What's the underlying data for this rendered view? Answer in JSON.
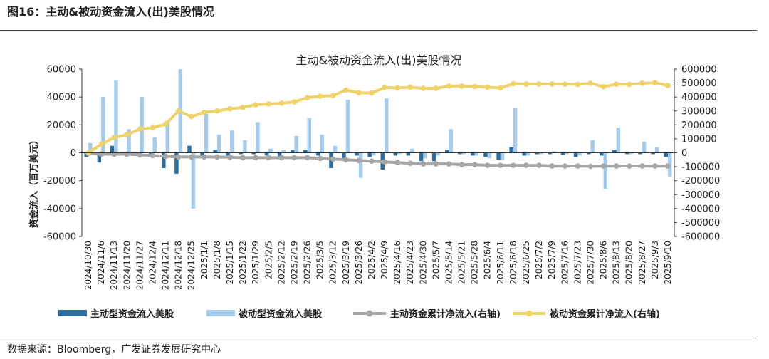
{
  "page": {
    "figure_title": "图16：主动&被动资金流入(出)美股情况",
    "source_text": "数据来源：Bloomberg，广发证券发展研究中心"
  },
  "colors": {
    "active": "#2e6e9e",
    "passive": "#a7cbea",
    "active_cum": "#a6a6a6",
    "passive_cum": "#f0d26a",
    "axis": "#333333"
  },
  "chart_data": {
    "type": "bar",
    "title": "主动&被动资金流入(出)美股情况",
    "ylabel": "资金流入（百万美元）",
    "y2label": "",
    "ylim": [
      -60000,
      60000
    ],
    "y2lim": [
      -600000,
      600000
    ],
    "yticks": [
      -60000,
      -40000,
      -20000,
      0,
      20000,
      40000,
      60000
    ],
    "y2ticks": [
      -600000,
      -500000,
      -400000,
      -300000,
      -200000,
      -100000,
      0,
      100000,
      200000,
      300000,
      400000,
      500000,
      600000
    ],
    "categories": [
      "2024/10/30",
      "2024/11/6",
      "2024/11/13",
      "2024/11/20",
      "2024/11/27",
      "2024/12/4",
      "2024/12/11",
      "2024/12/18",
      "2024/12/25",
      "2025/1/1",
      "2025/1/8",
      "2025/1/15",
      "2025/1/22",
      "2025/1/29",
      "2025/2/5",
      "2025/2/12",
      "2025/2/19",
      "2025/2/26",
      "2025/3/5",
      "2025/3/12",
      "2025/3/19",
      "2025/3/26",
      "2025/4/2",
      "2025/4/9",
      "2025/4/16",
      "2025/4/23",
      "2025/4/30",
      "2025/5/7",
      "2025/5/14",
      "2025/5/21",
      "2025/5/28",
      "2025/6/4",
      "2025/6/11",
      "2025/6/18",
      "2025/6/25",
      "2025/7/2",
      "2025/7/9",
      "2025/7/16",
      "2025/7/23",
      "2025/7/30",
      "2025/8/6",
      "2025/8/13",
      "2025/8/20",
      "2025/8/27",
      "2025/9/3",
      "2025/9/10"
    ],
    "series": [
      {
        "name": "主动型资金流入美股",
        "kind": "bar",
        "axis": "left",
        "color": "#2e6e9e",
        "values": [
          -3000,
          -7000,
          5000,
          -1000,
          -2000,
          -1500,
          -11000,
          -15000,
          5000,
          -3000,
          2000,
          -2000,
          -1000,
          -1000,
          -2000,
          -3000,
          2000,
          2000,
          -2000,
          -11000,
          -4000,
          -2000,
          -3000,
          -12000,
          -2000,
          -2000,
          -6000,
          -6000,
          2000,
          -1000,
          -2000,
          -3000,
          -5000,
          4000,
          -2000,
          -1000,
          -1000,
          -1500,
          -3000,
          -1000,
          -2000,
          2000,
          -1000,
          -1000,
          -1000,
          -3000
        ]
      },
      {
        "name": "被动型资金流入美股",
        "kind": "bar",
        "axis": "left",
        "color": "#a7cbea",
        "values": [
          7000,
          40000,
          52000,
          17000,
          40000,
          11000,
          23000,
          60000,
          -40000,
          28000,
          13000,
          16000,
          9000,
          22000,
          3000,
          2000,
          12000,
          25000,
          13000,
          5000,
          38000,
          -18000,
          -2000,
          39000,
          -1000,
          3000,
          -4000,
          -2000,
          17000,
          -1000,
          -2000,
          -4000,
          -5000,
          32000,
          -2000,
          -1000,
          1000,
          -1000,
          -2000,
          9000,
          -26000,
          18000,
          -1000,
          8000,
          4000,
          -17000
        ]
      },
      {
        "name": "主动资金累计净流入(右轴)",
        "kind": "line",
        "axis": "right",
        "color": "#a6a6a6",
        "values": [
          -5000,
          -10000,
          -10000,
          -10000,
          -15000,
          -20000,
          -25000,
          -30000,
          -30000,
          -30000,
          -30000,
          -32000,
          -35000,
          -35000,
          -35000,
          -35000,
          -35000,
          -35000,
          -40000,
          -45000,
          -50000,
          -55000,
          -60000,
          -65000,
          -70000,
          -75000,
          -80000,
          -80000,
          -80000,
          -85000,
          -85000,
          -90000,
          -90000,
          -90000,
          -90000,
          -90000,
          -95000,
          -95000,
          -95000,
          -97000,
          -95000,
          -95000,
          -95000,
          -95000,
          -95000,
          -95000
        ]
      },
      {
        "name": "被动资金累计净流入(右轴)",
        "kind": "line",
        "axis": "right",
        "color": "#f0d26a",
        "values": [
          0,
          60000,
          110000,
          130000,
          170000,
          180000,
          205000,
          300000,
          260000,
          290000,
          300000,
          315000,
          325000,
          345000,
          350000,
          355000,
          365000,
          395000,
          405000,
          410000,
          450000,
          430000,
          428000,
          468000,
          465000,
          470000,
          462000,
          462000,
          478000,
          478000,
          475000,
          470000,
          465000,
          495000,
          492000,
          493000,
          493000,
          492000,
          490000,
          498000,
          474000,
          492000,
          490000,
          498000,
          502000,
          482000
        ]
      }
    ],
    "legend": {
      "position": "bottom",
      "items": [
        "主动型资金流入美股",
        "被动型资金流入美股",
        "主动资金累计净流入(右轴)",
        "被动资金累计净流入(右轴)"
      ]
    }
  }
}
